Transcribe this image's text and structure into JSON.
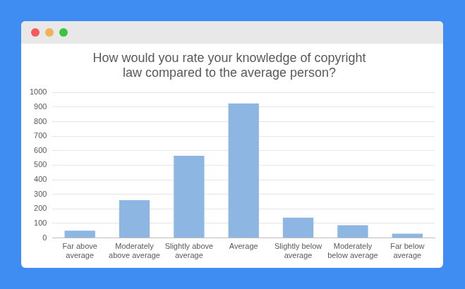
{
  "chart_data": {
    "type": "bar",
    "title": [
      "How would you rate your knowledge of copyright",
      "law compared to the average person?"
    ],
    "categories": [
      "Far above average",
      "Moderately above average",
      "Slightly above average",
      "Average",
      "Slightly below average",
      "Moderately below average",
      "Far below average"
    ],
    "values": [
      50,
      260,
      565,
      925,
      140,
      88,
      30
    ],
    "color": "#8db7e2",
    "ylim": [
      0,
      1000
    ],
    "yticks": [
      0,
      100,
      200,
      300,
      400,
      500,
      600,
      700,
      800,
      900,
      1000
    ],
    "grid": true
  }
}
